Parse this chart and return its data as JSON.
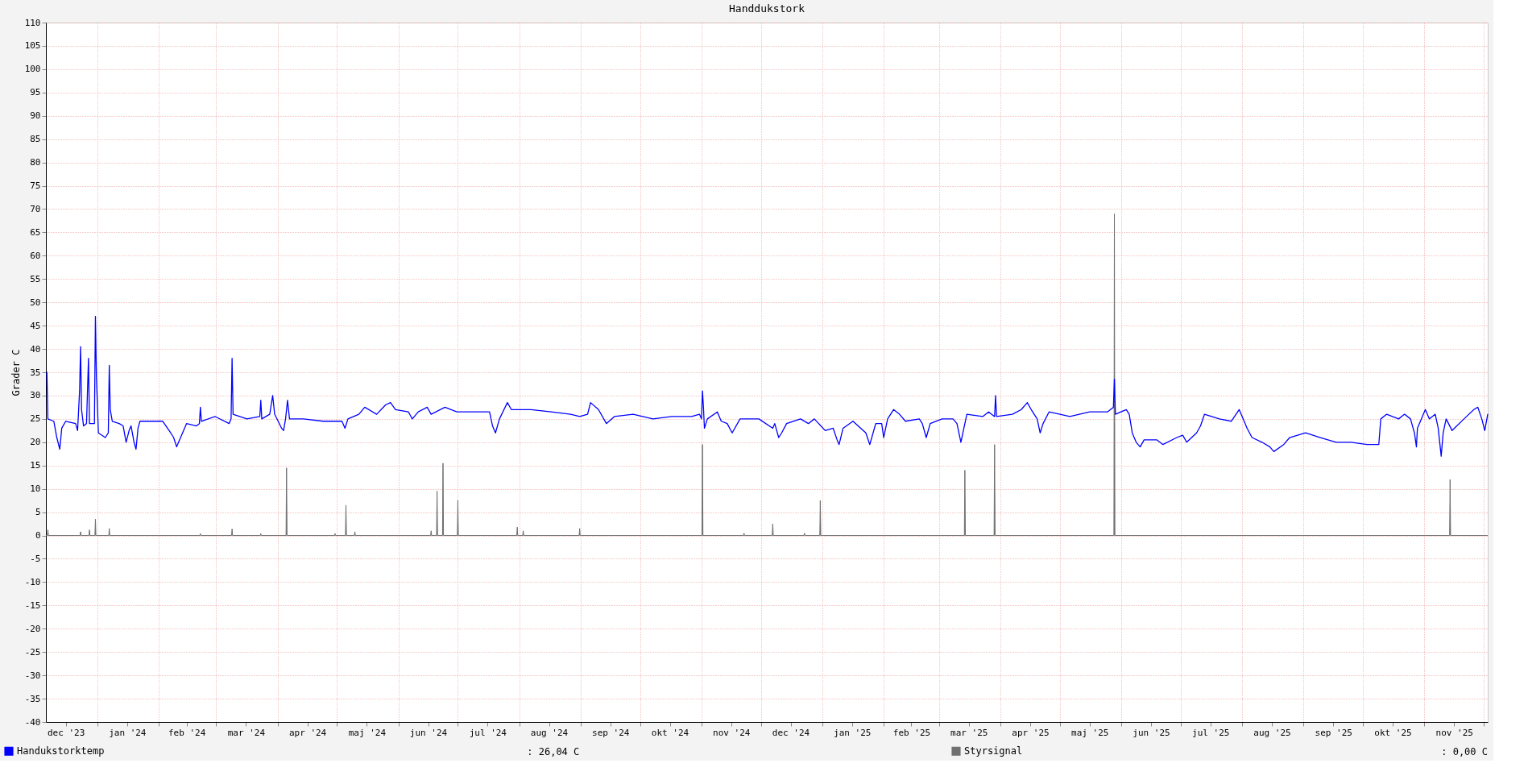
{
  "chart_data": {
    "type": "line",
    "title": "Handdukstork",
    "ylabel": "Grader C",
    "xlim": [
      "2023-12-06",
      "2025-12-03"
    ],
    "ylim": [
      -40,
      110
    ],
    "xticks": [
      {
        "value": "2023-12-16",
        "label": "dec '23"
      },
      {
        "value": "2024-01-01",
        "label": null
      },
      {
        "value": "2024-01-16",
        "label": "jan '24"
      },
      {
        "value": "2024-02-01",
        "label": null
      },
      {
        "value": "2024-02-15",
        "label": "feb '24"
      },
      {
        "value": "2024-03-01",
        "label": null
      },
      {
        "value": "2024-03-16",
        "label": "mar '24"
      },
      {
        "value": "2024-04-01",
        "label": null
      },
      {
        "value": "2024-04-16",
        "label": "apr '24"
      },
      {
        "value": "2024-05-01",
        "label": null
      },
      {
        "value": "2024-05-16",
        "label": "maj '24"
      },
      {
        "value": "2024-06-01",
        "label": null
      },
      {
        "value": "2024-06-16",
        "label": "jun '24"
      },
      {
        "value": "2024-07-01",
        "label": null
      },
      {
        "value": "2024-07-16",
        "label": "jul '24"
      },
      {
        "value": "2024-08-01",
        "label": null
      },
      {
        "value": "2024-08-16",
        "label": "aug '24"
      },
      {
        "value": "2024-09-01",
        "label": null
      },
      {
        "value": "2024-09-16",
        "label": "sep '24"
      },
      {
        "value": "2024-10-01",
        "label": null
      },
      {
        "value": "2024-10-16",
        "label": "okt '24"
      },
      {
        "value": "2024-11-01",
        "label": null
      },
      {
        "value": "2024-11-16",
        "label": "nov '24"
      },
      {
        "value": "2024-12-01",
        "label": null
      },
      {
        "value": "2024-12-16",
        "label": "dec '24"
      },
      {
        "value": "2025-01-01",
        "label": null
      },
      {
        "value": "2025-01-16",
        "label": "jan '25"
      },
      {
        "value": "2025-02-01",
        "label": null
      },
      {
        "value": "2025-02-15",
        "label": "feb '25"
      },
      {
        "value": "2025-03-01",
        "label": null
      },
      {
        "value": "2025-03-16",
        "label": "mar '25"
      },
      {
        "value": "2025-04-01",
        "label": null
      },
      {
        "value": "2025-04-16",
        "label": "apr '25"
      },
      {
        "value": "2025-05-01",
        "label": null
      },
      {
        "value": "2025-05-16",
        "label": "maj '25"
      },
      {
        "value": "2025-06-01",
        "label": null
      },
      {
        "value": "2025-06-16",
        "label": "jun '25"
      },
      {
        "value": "2025-07-01",
        "label": null
      },
      {
        "value": "2025-07-16",
        "label": "jul '25"
      },
      {
        "value": "2025-08-01",
        "label": null
      },
      {
        "value": "2025-08-16",
        "label": "aug '25"
      },
      {
        "value": "2025-09-01",
        "label": null
      },
      {
        "value": "2025-09-16",
        "label": "sep '25"
      },
      {
        "value": "2025-10-01",
        "label": null
      },
      {
        "value": "2025-10-16",
        "label": "okt '25"
      },
      {
        "value": "2025-11-01",
        "label": null
      },
      {
        "value": "2025-11-16",
        "label": "nov '25"
      },
      {
        "value": "2025-12-01",
        "label": null
      }
    ],
    "yticks": [
      -40,
      -35,
      -30,
      -25,
      -20,
      -15,
      -10,
      -5,
      0,
      5,
      10,
      15,
      20,
      25,
      30,
      35,
      40,
      45,
      50,
      55,
      60,
      65,
      70,
      75,
      80,
      85,
      90,
      95,
      100,
      105,
      110
    ],
    "grid": true,
    "legend": "bottom",
    "annotations": [
      ": 26,04 C",
      ": 0,00 C"
    ],
    "series": [
      {
        "name": "Handukstorktemp",
        "color": "#0000ff",
        "x": [
          "2023-12-06T12:00",
          "2023-12-07",
          "2023-12-10",
          "2023-12-11T12:00",
          "2023-12-13",
          "2023-12-14",
          "2023-12-16",
          "2023-12-21",
          "2023-12-22",
          "2023-12-23",
          "2023-12-23T12:00",
          "2023-12-24",
          "2023-12-25",
          "2023-12-26T12:00",
          "2023-12-27T12:00",
          "2023-12-28",
          "2023-12-30T12:00",
          "2023-12-31",
          "2023-12-31T12:00",
          "2024-01-01T12:00",
          "2024-01-05",
          "2024-01-06T12:00",
          "2024-01-07",
          "2024-01-07T12:00",
          "2024-01-08T12:00",
          "2024-01-12",
          "2024-01-14",
          "2024-01-15T12:00",
          "2024-01-17",
          "2024-01-18",
          "2024-01-19T12:00",
          "2024-01-20T12:00",
          "2024-01-21T12:00",
          "2024-01-22T12:00",
          "2024-01-27T12:00",
          "2024-02-03",
          "2024-02-07",
          "2024-02-08T12:00",
          "2024-02-10",
          "2024-02-13",
          "2024-02-15",
          "2024-02-20",
          "2024-02-21T12:00",
          "2024-02-22",
          "2024-02-22T12:00",
          "2024-02-29T12:00",
          "2024-03-07T12:00",
          "2024-03-08T12:00",
          "2024-03-09",
          "2024-03-09T12:00",
          "2024-03-16T12:00",
          "2024-03-23",
          "2024-03-23T12:00",
          "2024-03-24",
          "2024-03-28",
          "2024-03-29T12:00",
          "2024-03-30T12:00",
          "2024-04-03",
          "2024-04-04",
          "2024-04-05",
          "2024-04-06",
          "2024-04-07",
          "2024-04-14",
          "2024-04-24",
          "2024-05-03T12:00",
          "2024-05-05",
          "2024-05-06T12:00",
          "2024-05-12",
          "2024-05-15",
          "2024-05-21",
          "2024-05-25T12:00",
          "2024-05-28",
          "2024-05-30T12:00",
          "2024-06-06",
          "2024-06-08",
          "2024-06-11",
          "2024-06-15T12:00",
          "2024-06-17T12:00",
          "2024-06-24T12:00",
          "2024-06-30T12:00",
          "2024-07-08",
          "2024-07-14",
          "2024-07-17",
          "2024-07-18T12:00",
          "2024-07-20",
          "2024-07-22",
          "2024-07-26",
          "2024-07-28",
          "2024-08-07",
          "2024-08-17",
          "2024-08-27",
          "2024-08-31T12:00",
          "2024-09-04T12:00",
          "2024-09-06",
          "2024-09-10",
          "2024-09-14",
          "2024-09-18",
          "2024-09-27T12:00",
          "2024-10-07T12:00",
          "2024-10-17",
          "2024-10-27",
          "2024-10-31",
          "2024-11-01",
          "2024-11-01T12:00",
          "2024-11-02",
          "2024-11-02T12:00",
          "2024-11-04",
          "2024-11-09",
          "2024-11-11",
          "2024-11-14",
          "2024-11-16T12:00",
          "2024-11-20T12:00",
          "2024-11-30",
          "2024-12-07",
          "2024-12-08",
          "2024-12-10",
          "2024-12-11T12:00",
          "2024-12-14",
          "2024-12-21",
          "2024-12-25",
          "2024-12-28",
          "2025-01-02T12:00",
          "2025-01-06T12:00",
          "2025-01-08T12:00",
          "2025-01-09T12:00",
          "2025-01-11T12:00",
          "2025-01-16T12:00",
          "2025-01-23",
          "2025-01-25",
          "2025-01-26",
          "2025-01-28",
          "2025-01-31",
          "2025-02-01",
          "2025-02-03",
          "2025-02-06",
          "2025-02-09",
          "2025-02-12",
          "2025-02-19",
          "2025-02-20T12:00",
          "2025-02-22T12:00",
          "2025-02-24T12:00",
          "2025-03-02T12:00",
          "2025-03-08",
          "2025-03-10",
          "2025-03-12",
          "2025-03-13",
          "2025-03-15",
          "2025-03-23",
          "2025-03-26",
          "2025-03-29",
          "2025-03-29T12:00",
          "2025-03-30",
          "2025-04-07",
          "2025-04-11T12:00",
          "2025-04-14T12:00",
          "2025-04-16T12:00",
          "2025-04-19T12:00",
          "2025-04-21",
          "2025-04-22T12:00",
          "2025-04-25T12:00",
          "2025-05-06",
          "2025-05-16",
          "2025-05-25",
          "2025-05-28",
          "2025-05-28T12:00",
          "2025-05-29",
          "2025-06-03T12:00",
          "2025-06-05",
          "2025-06-06T12:00",
          "2025-06-08T12:00",
          "2025-06-10T12:00",
          "2025-06-12T12:00",
          "2025-06-19",
          "2025-06-22",
          "2025-06-29",
          "2025-07-02",
          "2025-07-04",
          "2025-07-09",
          "2025-07-11",
          "2025-07-13",
          "2025-07-20T12:00",
          "2025-07-26T12:00",
          "2025-07-30T12:00",
          "2025-08-01T12:00",
          "2025-08-03T12:00",
          "2025-08-06",
          "2025-08-11",
          "2025-08-15",
          "2025-08-17",
          "2025-08-22",
          "2025-08-25",
          "2025-09-02",
          "2025-09-09T12:00",
          "2025-09-17T12:00",
          "2025-09-25",
          "2025-10-03",
          "2025-10-09",
          "2025-10-10",
          "2025-10-13",
          "2025-10-19",
          "2025-10-22",
          "2025-10-25",
          "2025-10-27",
          "2025-10-28",
          "2025-10-28T12:00",
          "2025-11-01T12:00",
          "2025-11-03T12:00",
          "2025-11-06T12:00",
          "2025-11-08",
          "2025-11-09T12:00",
          "2025-11-10T12:00",
          "2025-11-12",
          "2025-11-15",
          "2025-11-21",
          "2025-11-26",
          "2025-11-28",
          "2025-11-30",
          "2025-12-01T12:00",
          "2025-12-03"
        ],
        "values": [
          35,
          25,
          24.5,
          21,
          18.5,
          23,
          24.5,
          24,
          22.5,
          31,
          40.5,
          27,
          23.5,
          24,
          38,
          24,
          24,
          47,
          34,
          22,
          21,
          22,
          36.5,
          27,
          24.5,
          24,
          23.5,
          20,
          22.5,
          23.5,
          20,
          18.5,
          23,
          24.5,
          24.5,
          24.5,
          22,
          21,
          19,
          22,
          24,
          23.5,
          24,
          27.5,
          24.5,
          25.5,
          24,
          25,
          38,
          26,
          25,
          25.5,
          29,
          25,
          26,
          30,
          26,
          23,
          22.5,
          25,
          29,
          25,
          25,
          24.5,
          24.5,
          23,
          25,
          26,
          27.5,
          26,
          28,
          28.5,
          27,
          26.5,
          25,
          26.5,
          27.5,
          26,
          27.5,
          26.5,
          26.5,
          26.5,
          26.5,
          23.5,
          22,
          25,
          28.5,
          27,
          27,
          26.5,
          26,
          25.5,
          26,
          28.5,
          27,
          24,
          25.5,
          26,
          25,
          25.5,
          25.5,
          26,
          25,
          31,
          27.5,
          23,
          25,
          26.5,
          24.5,
          24,
          22,
          25,
          25,
          23,
          24,
          21,
          22,
          24,
          25,
          24,
          25,
          22.5,
          23,
          20.5,
          19.5,
          23,
          24.5,
          22,
          19.5,
          21,
          24,
          24,
          21,
          25,
          27,
          26,
          24.5,
          25,
          24,
          21,
          24,
          25,
          25,
          24,
          20,
          22,
          26,
          25.5,
          26.5,
          25.5,
          30,
          25.5,
          26,
          27,
          28.5,
          27,
          25,
          22,
          24,
          26.5,
          25.5,
          26.5,
          26.5,
          27.5,
          33.5,
          26,
          27,
          26,
          22,
          20,
          19,
          20.5,
          20.5,
          19.5,
          21,
          21.5,
          20,
          22,
          23.5,
          26,
          25,
          24.5,
          27,
          25,
          23,
          21,
          20,
          19,
          18,
          19.5,
          21,
          22,
          21,
          20,
          20,
          19.5,
          19.5,
          25,
          26,
          25,
          26,
          25,
          22,
          19,
          23,
          27,
          25,
          26,
          23,
          17,
          22,
          25,
          22.5,
          25,
          27,
          27.5,
          25,
          22.5,
          26
        ]
      },
      {
        "name": "Styrsignal",
        "color": "#707070",
        "type": "area",
        "x": [
          "2023-12-06",
          "2023-12-06T18:00",
          "2023-12-07T00:00",
          "2023-12-07T06:00",
          "2023-12-23T06:00",
          "2023-12-23T12:00",
          "2023-12-23T18:00",
          "2023-12-27T18:00",
          "2023-12-28T00:00",
          "2023-12-28T06:00",
          "2023-12-30T18:00",
          "2023-12-31T00:00",
          "2023-12-31T06:00",
          "2024-01-06T18:00",
          "2024-01-07T00:00",
          "2024-01-07T06:00",
          "2024-02-21T18:00",
          "2024-02-22T00:00",
          "2024-02-22T06:00",
          "2024-03-08T18:00",
          "2024-03-09T00:00",
          "2024-03-09T06:00",
          "2024-03-23T06:00",
          "2024-03-23T12:00",
          "2024-03-23T18:00",
          "2024-04-05T06:00",
          "2024-04-05T12:00",
          "2024-04-05T18:00",
          "2024-04-29T18:00",
          "2024-04-30T00:00",
          "2024-04-30T06:00",
          "2024-05-05T06:00",
          "2024-05-05T12:00",
          "2024-05-05T18:00",
          "2024-05-09T18:00",
          "2024-05-10T00:00",
          "2024-05-10T06:00",
          "2024-06-17T06:00",
          "2024-06-17T12:00",
          "2024-06-17T18:00",
          "2024-06-20T06:00",
          "2024-06-20T12:00",
          "2024-06-20T18:00",
          "2024-06-23T06:00",
          "2024-06-23T12:00",
          "2024-06-23T18:00",
          "2024-06-30T18:00",
          "2024-07-01T00:00",
          "2024-07-01T06:00",
          "2024-07-30T18:00",
          "2024-07-31T00:00",
          "2024-07-31T06:00",
          "2024-08-02T18:00",
          "2024-08-03T00:00",
          "2024-08-03T06:00",
          "2024-08-31T06:00",
          "2024-08-31T12:00",
          "2024-08-31T18:00",
          "2024-11-01T06:00",
          "2024-11-01T12:00",
          "2024-11-01T18:00",
          "2024-11-22T06:00",
          "2024-11-22T12:00",
          "2024-11-22T18:00",
          "2024-12-06T18:00",
          "2024-12-07T00:00",
          "2024-12-07T06:00",
          "2024-12-22T18:00",
          "2024-12-23T00:00",
          "2024-12-23T06:00",
          "2024-12-30T18:00",
          "2024-12-31T00:00",
          "2024-12-31T06:00",
          "2025-03-13T18:00",
          "2025-03-14T00:00",
          "2025-03-14T06:00",
          "2025-03-28T18:00",
          "2025-03-29T00:00",
          "2025-03-29T06:00",
          "2025-05-28T06:00",
          "2025-05-28T12:00",
          "2025-05-28T18:00",
          "2025-11-13T18:00",
          "2025-11-14T00:00",
          "2025-11-14T06:00",
          "2025-12-03"
        ],
        "values": [
          0,
          0,
          1.2,
          0,
          0,
          0.8,
          0,
          0,
          1.2,
          0,
          0,
          3.5,
          0,
          0,
          1.5,
          0,
          0,
          0.4,
          0,
          0,
          1.4,
          0,
          0,
          0.4,
          0,
          0,
          14.5,
          0,
          0,
          0.4,
          0,
          0,
          6.5,
          0,
          0,
          0.8,
          0,
          0,
          1,
          0,
          0,
          9.5,
          0,
          0,
          15.5,
          0,
          0,
          7.5,
          0,
          0,
          1.8,
          0,
          0,
          1,
          0,
          0,
          1.5,
          0,
          0,
          19.5,
          0,
          0,
          0.5,
          0,
          0,
          2.5,
          0,
          0,
          0.5,
          0,
          0,
          7.5,
          0,
          0,
          14,
          0,
          0,
          19.5,
          0,
          0,
          69,
          0,
          0,
          12,
          0,
          0
        ]
      }
    ]
  }
}
